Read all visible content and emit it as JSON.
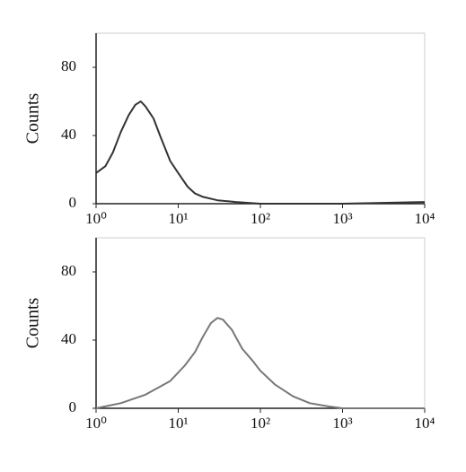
{
  "chart_data": [
    {
      "type": "line",
      "y_label": "Counts",
      "xscale": "log",
      "x": [
        1,
        1.3,
        1.6,
        2,
        2.5,
        3,
        3.5,
        4,
        5,
        6,
        7,
        8,
        10,
        13,
        16,
        20,
        30,
        50,
        100,
        1000,
        10000
      ],
      "values": [
        18,
        22,
        30,
        42,
        52,
        58,
        60,
        57,
        50,
        40,
        32,
        25,
        18,
        10,
        6,
        4,
        2,
        1,
        0,
        0,
        1
      ],
      "color": "#333333",
      "xlim": [
        1,
        10000
      ],
      "xticks": [
        {
          "value": 1,
          "label": "10⁰"
        },
        {
          "value": 10,
          "label": "10¹"
        },
        {
          "value": 100,
          "label": "10²"
        },
        {
          "value": 1000,
          "label": "10³"
        },
        {
          "value": 10000,
          "label": "10⁴"
        }
      ],
      "ylim": [
        0,
        100
      ],
      "yticks": [
        0,
        40,
        80
      ]
    },
    {
      "type": "line",
      "y_label": "Counts",
      "xscale": "log",
      "x": [
        1,
        2,
        4,
        8,
        12,
        16,
        20,
        25,
        30,
        35,
        45,
        60,
        80,
        100,
        150,
        250,
        400,
        700,
        1000,
        10000
      ],
      "values": [
        0,
        3,
        8,
        16,
        25,
        33,
        42,
        50,
        53,
        52,
        46,
        35,
        28,
        22,
        14,
        7,
        3,
        1,
        0,
        0
      ],
      "color": "#777777",
      "xlim": [
        1,
        10000
      ],
      "xticks": [
        {
          "value": 1,
          "label": "10⁰"
        },
        {
          "value": 10,
          "label": "10¹"
        },
        {
          "value": 100,
          "label": "10²"
        },
        {
          "value": 1000,
          "label": "10³"
        },
        {
          "value": 10000,
          "label": "10⁴"
        }
      ],
      "ylim": [
        0,
        100
      ],
      "yticks": [
        0,
        40,
        80
      ]
    }
  ]
}
